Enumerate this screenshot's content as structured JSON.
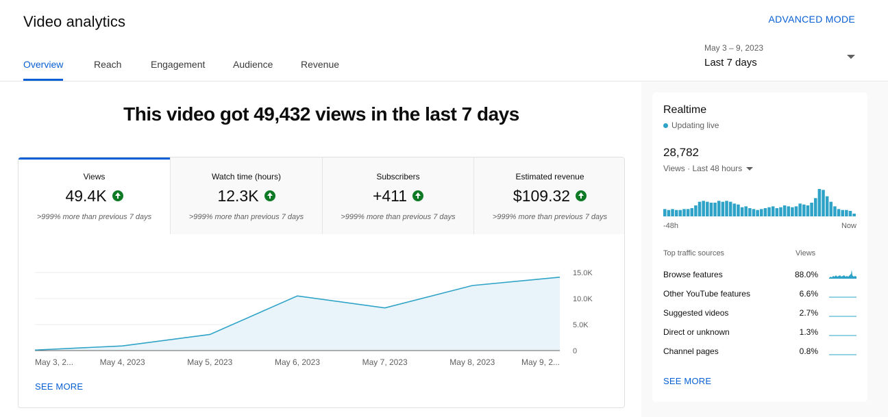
{
  "header": {
    "title": "Video analytics",
    "advanced_mode": "ADVANCED MODE",
    "tabs": [
      {
        "label": "Overview"
      },
      {
        "label": "Reach"
      },
      {
        "label": "Engagement"
      },
      {
        "label": "Audience"
      },
      {
        "label": "Revenue"
      }
    ],
    "date_range": {
      "dates": "May 3 – 9, 2023",
      "label": "Last 7 days"
    }
  },
  "overview": {
    "headline": "This video got 49,432 views in the last 7 days",
    "metrics": [
      {
        "label": "Views",
        "value": "49.4K",
        "compare": ">999% more than previous 7 days"
      },
      {
        "label": "Watch time (hours)",
        "value": "12.3K",
        "compare": ">999% more than previous 7 days"
      },
      {
        "label": "Subscribers",
        "value": "+411",
        "compare": ">999% more than previous 7 days"
      },
      {
        "label": "Estimated revenue",
        "value": "$109.32",
        "compare": ">999% more than previous 7 days"
      }
    ],
    "see_more": "SEE MORE"
  },
  "chart_data": {
    "type": "area",
    "x": [
      "May 3, 2...",
      "May 4, 2023",
      "May 5, 2023",
      "May 6, 2023",
      "May 7, 2023",
      "May 8, 2023",
      "May 9, 2..."
    ],
    "series": [
      {
        "values": [
          100,
          900,
          3100,
          10500,
          8200,
          12500,
          14100
        ]
      }
    ],
    "ylim": [
      0,
      15000
    ],
    "yticks": [
      "15.0K",
      "10.0K",
      "5.0K",
      "0"
    ],
    "y_tick_values": [
      15000,
      10000,
      5000,
      0
    ],
    "colors": {
      "line": "#2ea3c7",
      "fill": "#e8f4f9"
    },
    "grid": true
  },
  "realtime": {
    "title": "Realtime",
    "status": "Updating live",
    "count": "28,782",
    "period": "Views · Last 48 hours",
    "axis_start": "-48h",
    "axis_end": "Now",
    "hourly_views": [
      8,
      7,
      8,
      7,
      7,
      8,
      8,
      9,
      12,
      16,
      17,
      16,
      15,
      15,
      17,
      16,
      17,
      16,
      14,
      13,
      10,
      11,
      9,
      8,
      7,
      8,
      9,
      10,
      11,
      9,
      10,
      12,
      11,
      10,
      11,
      14,
      13,
      12,
      15,
      20,
      30,
      29,
      22,
      16,
      11,
      8,
      7,
      7,
      6,
      3
    ],
    "sources_header": "Top traffic sources",
    "views_header": "Views",
    "sources": [
      {
        "name": "Browse features",
        "pct": "88.0%"
      },
      {
        "name": "Other YouTube features",
        "pct": "6.6%"
      },
      {
        "name": "Suggested videos",
        "pct": "2.7%"
      },
      {
        "name": "Direct or unknown",
        "pct": "1.3%"
      },
      {
        "name": "Channel pages",
        "pct": "0.8%"
      }
    ],
    "see_more": "SEE MORE"
  }
}
